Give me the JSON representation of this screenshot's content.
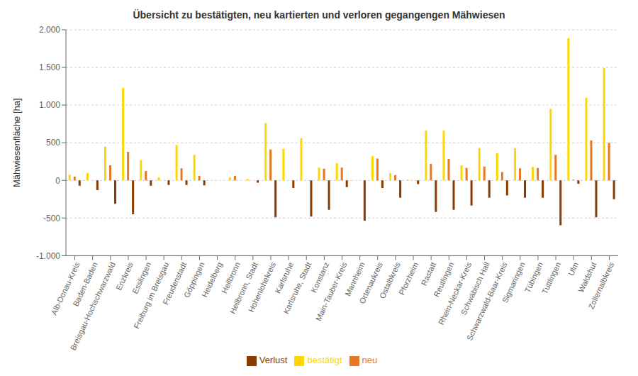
{
  "chart_data": {
    "type": "bar",
    "title": "Übersicht zu bestätigten, neu kartierten und verloren gegangengen Mähwiesen",
    "y_label": "Mähwiesenfläche [ha]",
    "categories": [
      "Alb-Donau-Kreis",
      "Baden-Baden",
      "Breisgau-Hochschwarzwald",
      "Enzkreis",
      "Esslingen",
      "Freiburg im Breisgau",
      "Freudenstadt",
      "Göppingen",
      "Heidelberg",
      "Heilbronn",
      "Heilbronn, Stadt",
      "Hohenlohekreis",
      "Karlsruhe",
      "Karlsruhe, Stadt",
      "Konstanz",
      "Main-Tauber-Kreis",
      "Mannheim",
      "Ortenaukreis",
      "Ostalbkreis",
      "Pforzheim",
      "Rastatt",
      "Reutlingen",
      "Rhein-Neckar-Kreis",
      "Schwäbisch Hall",
      "Schwarzwald-Baar-Kreis",
      "Sigmaringen",
      "Tübingen",
      "Tuttlingen",
      "Ulm",
      "Waldshut",
      "Zollernalbkreis"
    ],
    "series": [
      {
        "name": "bestätigt",
        "color": "#FFD700",
        "values": [
          75,
          100,
          450,
          1230,
          270,
          40,
          470,
          340,
          0,
          40,
          20,
          760,
          420,
          560,
          170,
          230,
          0,
          320,
          100,
          10,
          660,
          660,
          200,
          430,
          360,
          430,
          180,
          950,
          1890,
          1100,
          1490
        ]
      },
      {
        "name": "neu",
        "color": "#E87722",
        "values": [
          50,
          0,
          200,
          380,
          125,
          0,
          160,
          60,
          0,
          60,
          0,
          410,
          0,
          0,
          155,
          170,
          0,
          290,
          70,
          0,
          220,
          285,
          165,
          185,
          110,
          160,
          165,
          340,
          10,
          530,
          500
        ]
      },
      {
        "name": "Verlust",
        "color": "#8B3A00",
        "values": [
          -70,
          -130,
          -310,
          -450,
          -70,
          -60,
          -60,
          -65,
          0,
          0,
          -30,
          -490,
          -100,
          -480,
          -390,
          -90,
          -535,
          -100,
          -230,
          -50,
          -420,
          -390,
          -335,
          -230,
          -200,
          -230,
          -230,
          -595,
          -45,
          -490,
          -250
        ]
      }
    ],
    "ylim": [
      -1000,
      2000
    ],
    "yticks": [
      {
        "value": -1000,
        "label": "-1.000"
      },
      -500,
      0,
      500,
      {
        "value": 1000,
        "label": "1.000"
      },
      {
        "value": 1500,
        "label": "1.500"
      },
      {
        "value": 2000,
        "label": "2.000"
      }
    ],
    "grid": true,
    "legend": "bottom"
  }
}
